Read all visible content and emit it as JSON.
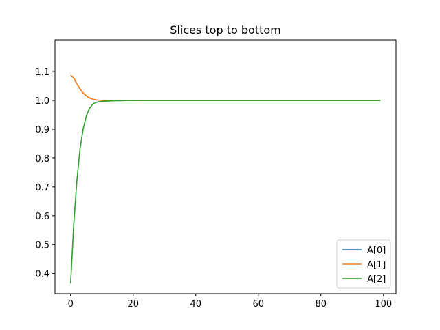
{
  "chart_data": {
    "type": "line",
    "title": "Slices top to bottom",
    "xlabel": "",
    "ylabel": "",
    "xlim": [
      -5,
      104
    ],
    "ylim": [
      0.33,
      1.21
    ],
    "xticks": [
      0,
      20,
      40,
      60,
      80,
      100
    ],
    "xtick_labels": [
      "0",
      "20",
      "40",
      "60",
      "80",
      "100"
    ],
    "yticks": [
      0.4,
      0.5,
      0.6,
      0.7,
      0.8,
      0.9,
      1.0,
      1.1
    ],
    "ytick_labels": [
      "0.4",
      "0.5",
      "0.6",
      "0.7",
      "0.8",
      "0.9",
      "1.0",
      "1.1"
    ],
    "grid": false,
    "legend_position": "lower-right",
    "series": [
      {
        "name": "A[0]",
        "color": "#1f77b4",
        "x": [
          0,
          1,
          2,
          3,
          4,
          5,
          6,
          7,
          8,
          9,
          10,
          12,
          14,
          16,
          18,
          20,
          22,
          25,
          30,
          40,
          50,
          60,
          70,
          80,
          90,
          99
        ],
        "y": [
          1.088,
          1.078,
          1.058,
          1.04,
          1.026,
          1.016,
          1.009,
          1.005,
          1.002,
          1.001,
          1.0,
          1.0,
          0.9995,
          0.9995,
          0.9998,
          1.0,
          1.0005,
          1.0,
          1.0,
          1.0,
          1.0,
          1.0,
          1.0,
          1.0,
          1.0,
          1.0
        ]
      },
      {
        "name": "A[1]",
        "color": "#ff7f0e",
        "x": [
          0,
          1,
          2,
          3,
          4,
          5,
          6,
          7,
          8,
          9,
          10,
          12,
          14,
          16,
          18,
          20,
          22,
          25,
          30,
          40,
          50,
          60,
          70,
          80,
          90,
          99
        ],
        "y": [
          1.088,
          1.078,
          1.058,
          1.04,
          1.026,
          1.016,
          1.009,
          1.005,
          1.002,
          1.001,
          1.0,
          1.0,
          0.9995,
          0.9995,
          0.9998,
          1.0,
          1.0005,
          1.0,
          1.0,
          1.0,
          1.0,
          1.0,
          1.0,
          1.0,
          1.0,
          1.0
        ]
      },
      {
        "name": "A[2]",
        "color": "#2ca02c",
        "x": [
          0,
          1,
          2,
          3,
          4,
          5,
          6,
          7,
          8,
          9,
          10,
          12,
          14,
          16,
          18,
          20,
          22,
          25,
          30,
          40,
          50,
          60,
          70,
          80,
          90,
          99
        ],
        "y": [
          0.365,
          0.57,
          0.72,
          0.83,
          0.9,
          0.945,
          0.972,
          0.986,
          0.993,
          0.995,
          0.996,
          0.998,
          0.999,
          0.9995,
          1.0,
          1.0,
          1.0005,
          1.0,
          1.0,
          1.0,
          1.0,
          1.0,
          1.0,
          1.0,
          1.0,
          1.0
        ]
      }
    ]
  }
}
